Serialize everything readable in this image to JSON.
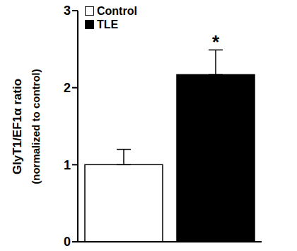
{
  "chart_data": {
    "type": "bar",
    "categories": [
      null
    ],
    "series": [
      {
        "name": "Control",
        "color": "#ffffff",
        "values": [
          1.0
        ],
        "error": [
          0.2
        ]
      },
      {
        "name": "TLE",
        "color": "#000000",
        "values": [
          2.17
        ],
        "error": [
          0.32
        ]
      }
    ],
    "y_label": [
      "GlyT1/EF1α ratio",
      "(normalized to control)"
    ],
    "annotations": [
      {
        "text": "*",
        "series": "TLE"
      }
    ],
    "ylim": [
      0,
      3
    ],
    "yticks": [
      0,
      1,
      2,
      3
    ],
    "legend": "upper left",
    "tick_labels": "y",
    "grid": false
  }
}
